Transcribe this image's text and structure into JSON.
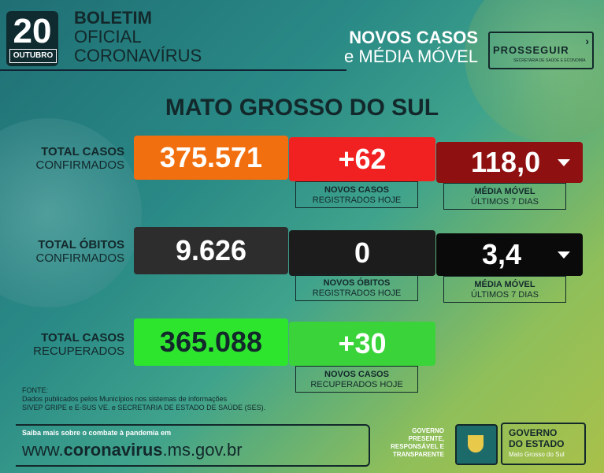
{
  "header": {
    "day": "20",
    "month": "OUTUBRO",
    "title_line1": "BOLETIM",
    "title_line2": "OFICIAL",
    "title_line3": "CORONAVÍRUS",
    "right_line1": "NOVOS CASOS",
    "right_line2_prefix": "e",
    "right_line2": "MÉDIA MÓVEL",
    "logo_text": "PROSSEGUIR",
    "logo_sub": "SECRETARIA DE SAÚDE E ECONOMIA"
  },
  "state": "MATO GROSSO DO SUL",
  "rows": [
    {
      "label_bold": "TOTAL CASOS",
      "label_sub": "CONFIRMADOS",
      "total": "375.571",
      "total_color": "#f26f0f",
      "new": "+62",
      "new_color": "#f22121",
      "new_label_bold": "NOVOS CASOS",
      "new_label_sub": "REGISTRADOS HOJE",
      "avg": "118,0",
      "avg_color": "#8e1010",
      "avg_label_bold": "MÉDIA MÓVEL",
      "avg_label_sub": "ÚLTIMOS 7 DIAS",
      "trend_icon": "arrow-down"
    },
    {
      "label_bold": "TOTAL ÓBITOS",
      "label_sub": "CONFIRMADOS",
      "total": "9.626",
      "total_color": "#2d2d2d",
      "new": "0",
      "new_color": "#1c1c1c",
      "new_label_bold": "NOVOS ÓBITOS",
      "new_label_sub": "REGISTRADOS HOJE",
      "avg": "3,4",
      "avg_color": "#0a0a0a",
      "avg_label_bold": "MÉDIA MÓVEL",
      "avg_label_sub": "ÚLTIMOS 7 DIAS",
      "trend_icon": "arrow-down"
    },
    {
      "label_bold": "TOTAL CASOS",
      "label_sub": "RECUPERADOS",
      "total": "365.088",
      "total_color": "#2ee52e",
      "new": "+30",
      "new_color": "#3ad43a",
      "new_label_bold": "NOVOS CASOS",
      "new_label_sub": "RECUPERADOS HOJE"
    }
  ],
  "source": {
    "title": "FONTE:",
    "line1": "Dados publicados pelos Municípios nos sistemas de informações",
    "line2": "SIVEP GRIPE e E-SUS VE. e SECRETARIA DE ESTADO DE SAÚDE (SES)."
  },
  "footer": {
    "more_info": "Saiba mais sobre o combate à pandemia em",
    "url_prefix": "www.",
    "url_bold": "coronavirus",
    "url_suffix": ".ms.gov.br",
    "gov_tag1": "GOVERNO",
    "gov_tag2": "PRESENTE,",
    "gov_tag3": "RESPONSÁVEL E",
    "gov_tag4": "TRANSPARENTE",
    "gov_line1": "GOVERNO",
    "gov_line2": "DO ESTADO",
    "gov_line3": "Mato Grosso do Sul"
  }
}
